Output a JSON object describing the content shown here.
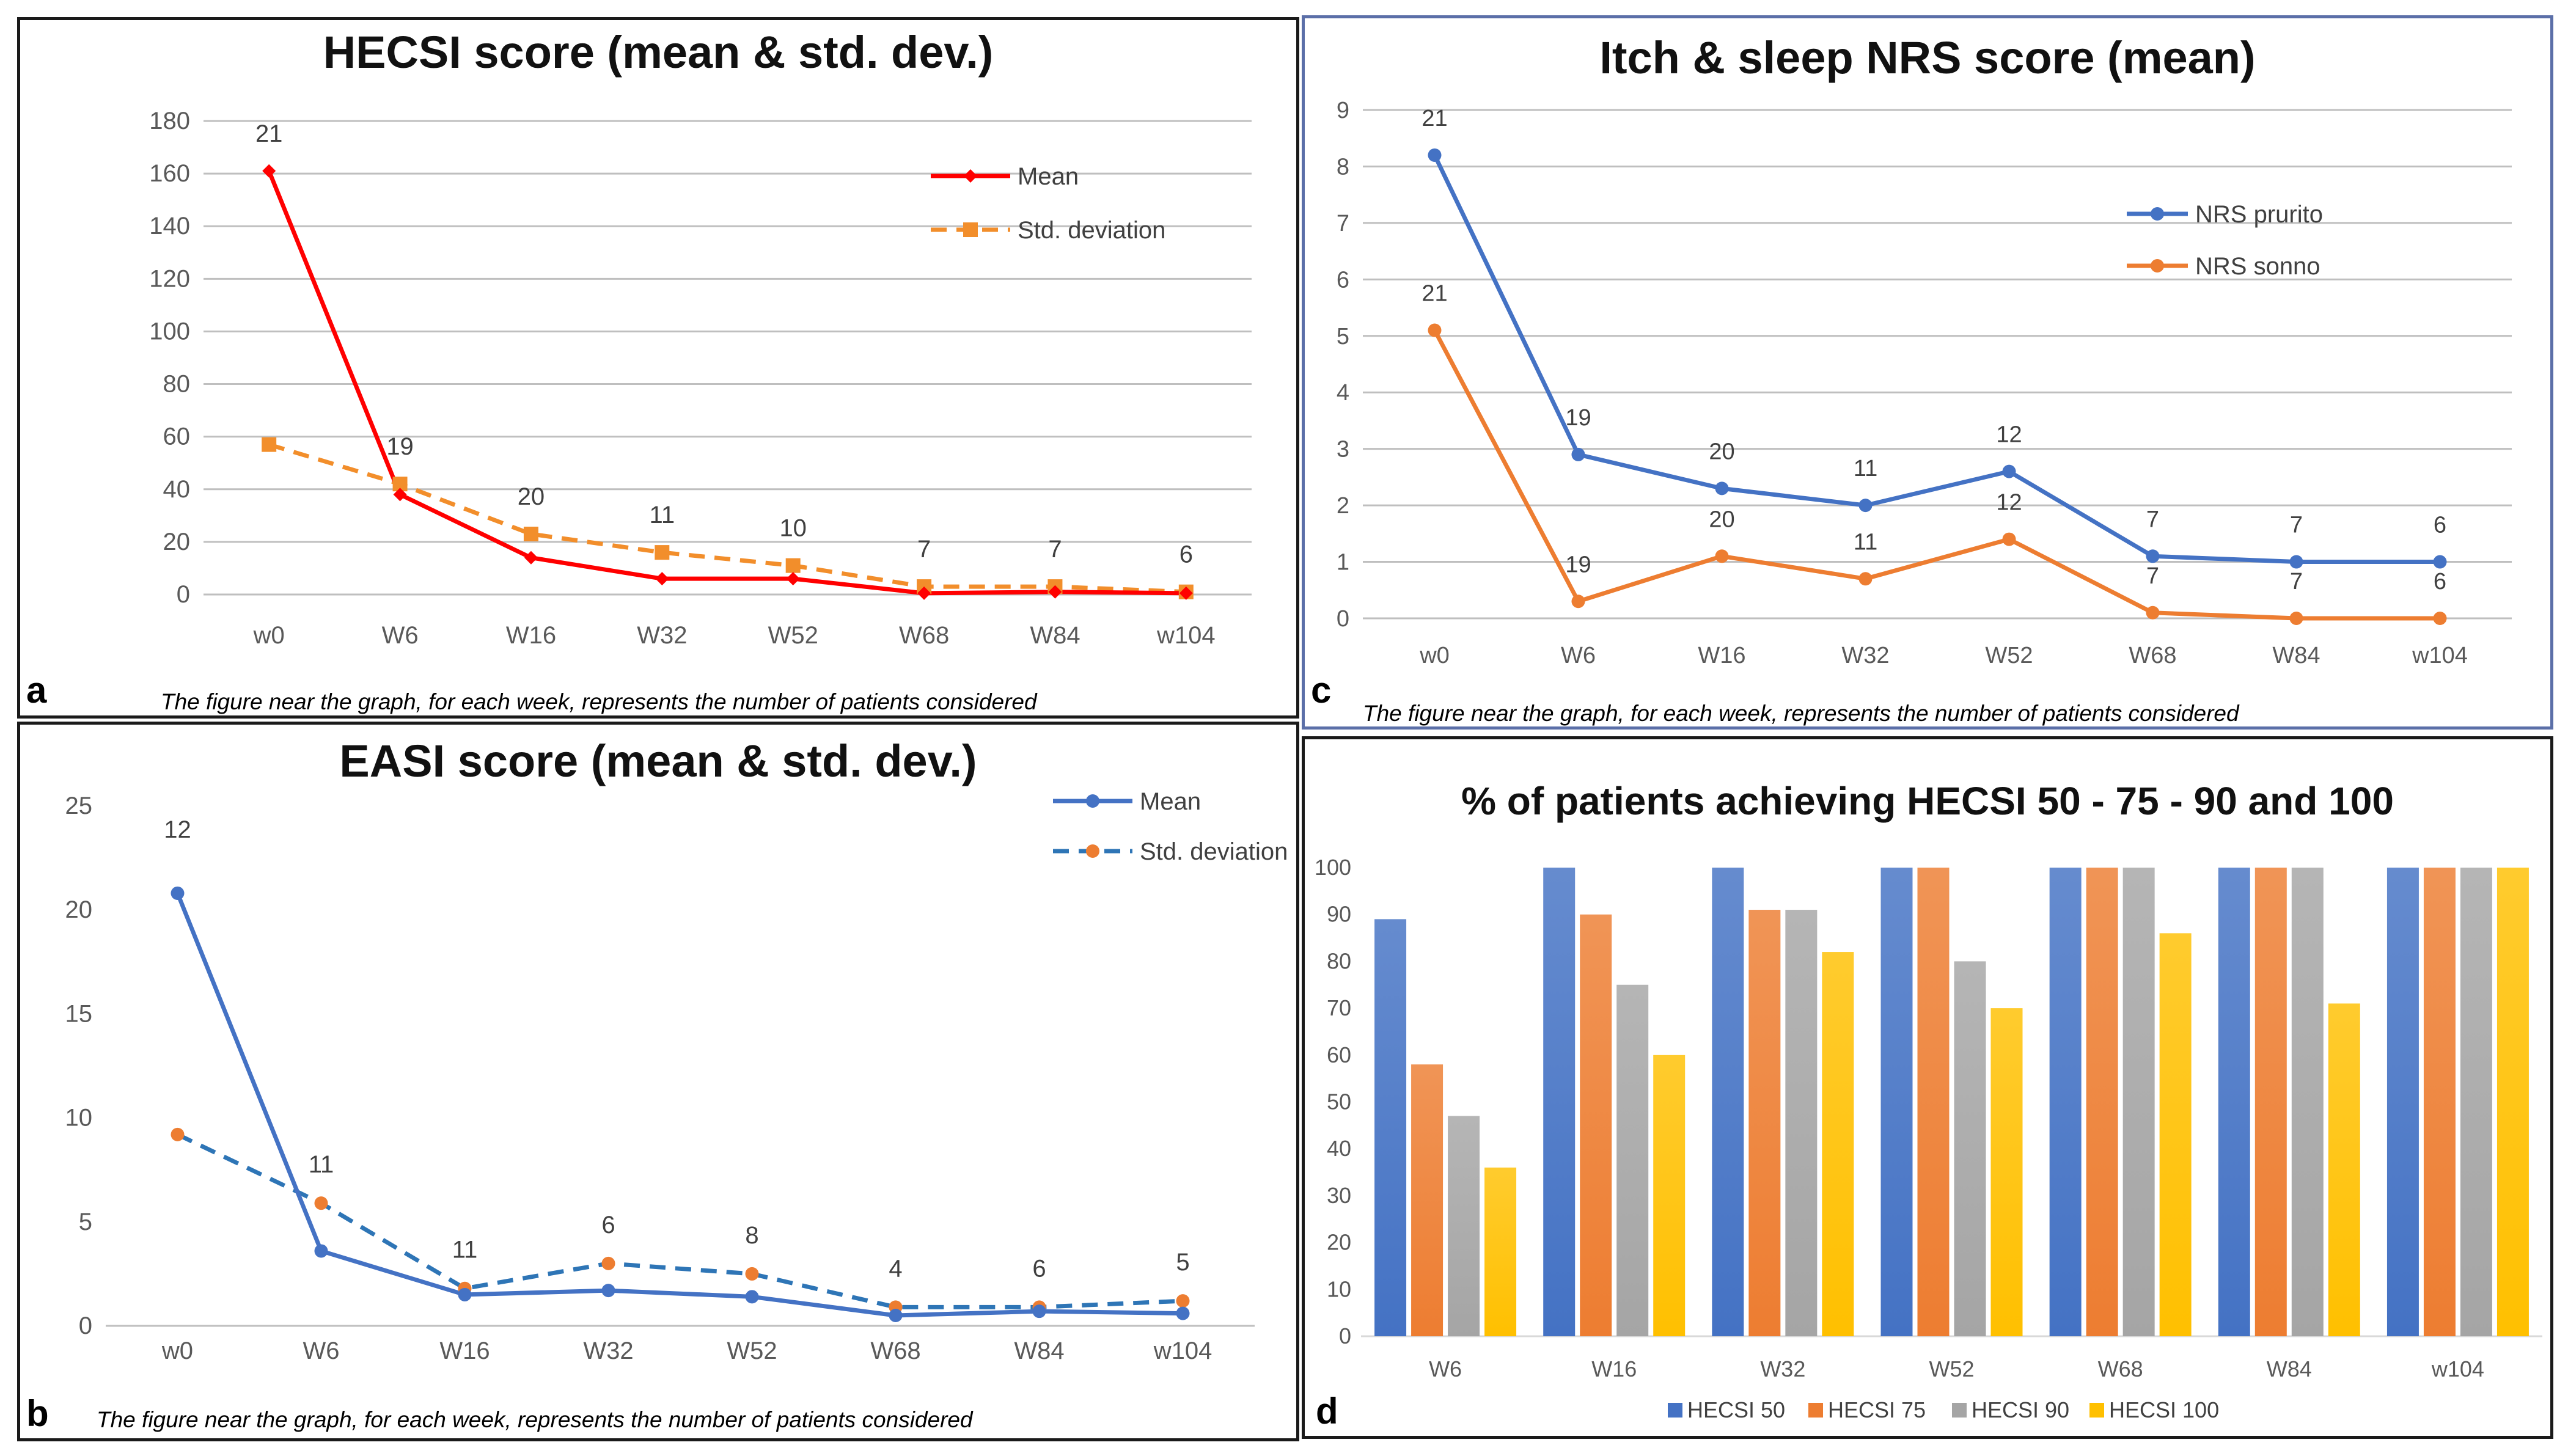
{
  "chart_data": [
    {
      "id": "a",
      "type": "line",
      "panel_letter": "a",
      "title": "HECSI score (mean & std. dev.)",
      "categories": [
        "w0",
        "W6",
        "W16",
        "W32",
        "W52",
        "W68",
        "W84",
        "w104"
      ],
      "ylim": [
        0,
        180
      ],
      "yticks": [
        0,
        20,
        40,
        60,
        80,
        100,
        120,
        140,
        160,
        180
      ],
      "grid": true,
      "series": [
        {
          "name": "Mean",
          "values": [
            161,
            38,
            14,
            6,
            6,
            0.5,
            1,
            0.5
          ],
          "color": "#ff0000",
          "dashed": false,
          "marker": "diamond"
        },
        {
          "name": "Std. deviation",
          "values": [
            57,
            42,
            23,
            16,
            11,
            3,
            3,
            1
          ],
          "color": "#f28e2b",
          "dashed": true,
          "marker": "square"
        }
      ],
      "point_labels": [
        "21",
        "19",
        "20",
        "11",
        "10",
        "7",
        "7",
        "6"
      ],
      "label_series": 0,
      "legend_position": "top-right",
      "caption": "The figure near the graph, for each week, represents the number of patients considered"
    },
    {
      "id": "b",
      "type": "line",
      "panel_letter": "b",
      "title": "EASI score (mean &  std. dev.)",
      "categories": [
        "w0",
        "W6",
        "W16",
        "W32",
        "W52",
        "W68",
        "W84",
        "w104"
      ],
      "ylim": [
        0,
        25
      ],
      "yticks": [
        0,
        5,
        10,
        15,
        20,
        25
      ],
      "grid": false,
      "series": [
        {
          "name": "Mean",
          "values": [
            20.8,
            3.6,
            1.5,
            1.7,
            1.4,
            0.5,
            0.7,
            0.6
          ],
          "color": "#4472c4",
          "dashed": false,
          "marker": "circle",
          "marker_color": "#4472c4"
        },
        {
          "name": "Std. deviation",
          "values": [
            9.2,
            5.9,
            1.8,
            3.0,
            2.5,
            0.9,
            0.9,
            1.2
          ],
          "color": "#2e75b6",
          "dashed": true,
          "marker": "circle",
          "marker_color": "#ed7d31"
        }
      ],
      "point_labels": [
        "12",
        "11",
        "11",
        "6",
        "8",
        "4",
        "6",
        "5"
      ],
      "label_series": 1,
      "legend_position": "top-right",
      "caption": "The figure near the graph, for each week, represents the number of patients considered"
    },
    {
      "id": "c",
      "type": "line",
      "panel_letter": "c",
      "title": "Itch & sleep NRS score (mean)",
      "categories": [
        "w0",
        "W6",
        "W16",
        "W32",
        "W52",
        "W68",
        "W84",
        "w104"
      ],
      "ylim": [
        0,
        9
      ],
      "yticks": [
        0,
        1,
        2,
        3,
        4,
        5,
        6,
        7,
        8,
        9
      ],
      "grid": true,
      "series": [
        {
          "name": "NRS prurito",
          "values": [
            8.2,
            2.9,
            2.3,
            2.0,
            2.6,
            1.1,
            1.0,
            1.0
          ],
          "color": "#4472c4",
          "dashed": false,
          "marker": "circle"
        },
        {
          "name": "NRS sonno",
          "values": [
            5.1,
            0.3,
            1.1,
            0.7,
            1.4,
            0.1,
            0.0,
            0.0
          ],
          "color": "#ed7d31",
          "dashed": false,
          "marker": "circle"
        }
      ],
      "point_labels_series": [
        [
          "21",
          "19",
          "20",
          "11",
          "12",
          "7",
          "7",
          "6"
        ],
        [
          "21",
          "19",
          "20",
          "11",
          "12",
          "7",
          "7",
          "6"
        ]
      ],
      "legend_position": "top-right",
      "caption": "The figure near the graph, for each week, represents the number of patients considered"
    },
    {
      "id": "d",
      "type": "bar",
      "panel_letter": "d",
      "title": "% of patients achieving HECSI 50 - 75 - 90 and 100",
      "categories": [
        "W6",
        "W16",
        "W32",
        "W52",
        "W68",
        "W84",
        "w104"
      ],
      "ylim": [
        0,
        100
      ],
      "yticks": [
        0,
        10,
        20,
        30,
        40,
        50,
        60,
        70,
        80,
        90,
        100
      ],
      "grid": false,
      "series": [
        {
          "name": "HECSI 50",
          "values": [
            89,
            100,
            100,
            100,
            100,
            100,
            100
          ],
          "color": "#4472c4"
        },
        {
          "name": "HECSI 75",
          "values": [
            58,
            90,
            91,
            100,
            100,
            100,
            100
          ],
          "color": "#ed7d31"
        },
        {
          "name": "HECSI 90",
          "values": [
            47,
            75,
            91,
            80,
            100,
            100,
            100
          ],
          "color": "#a5a5a5"
        },
        {
          "name": "HECSI 100",
          "values": [
            36,
            60,
            82,
            70,
            86,
            71,
            100
          ],
          "color": "#ffc000"
        }
      ],
      "legend_position": "bottom"
    }
  ]
}
